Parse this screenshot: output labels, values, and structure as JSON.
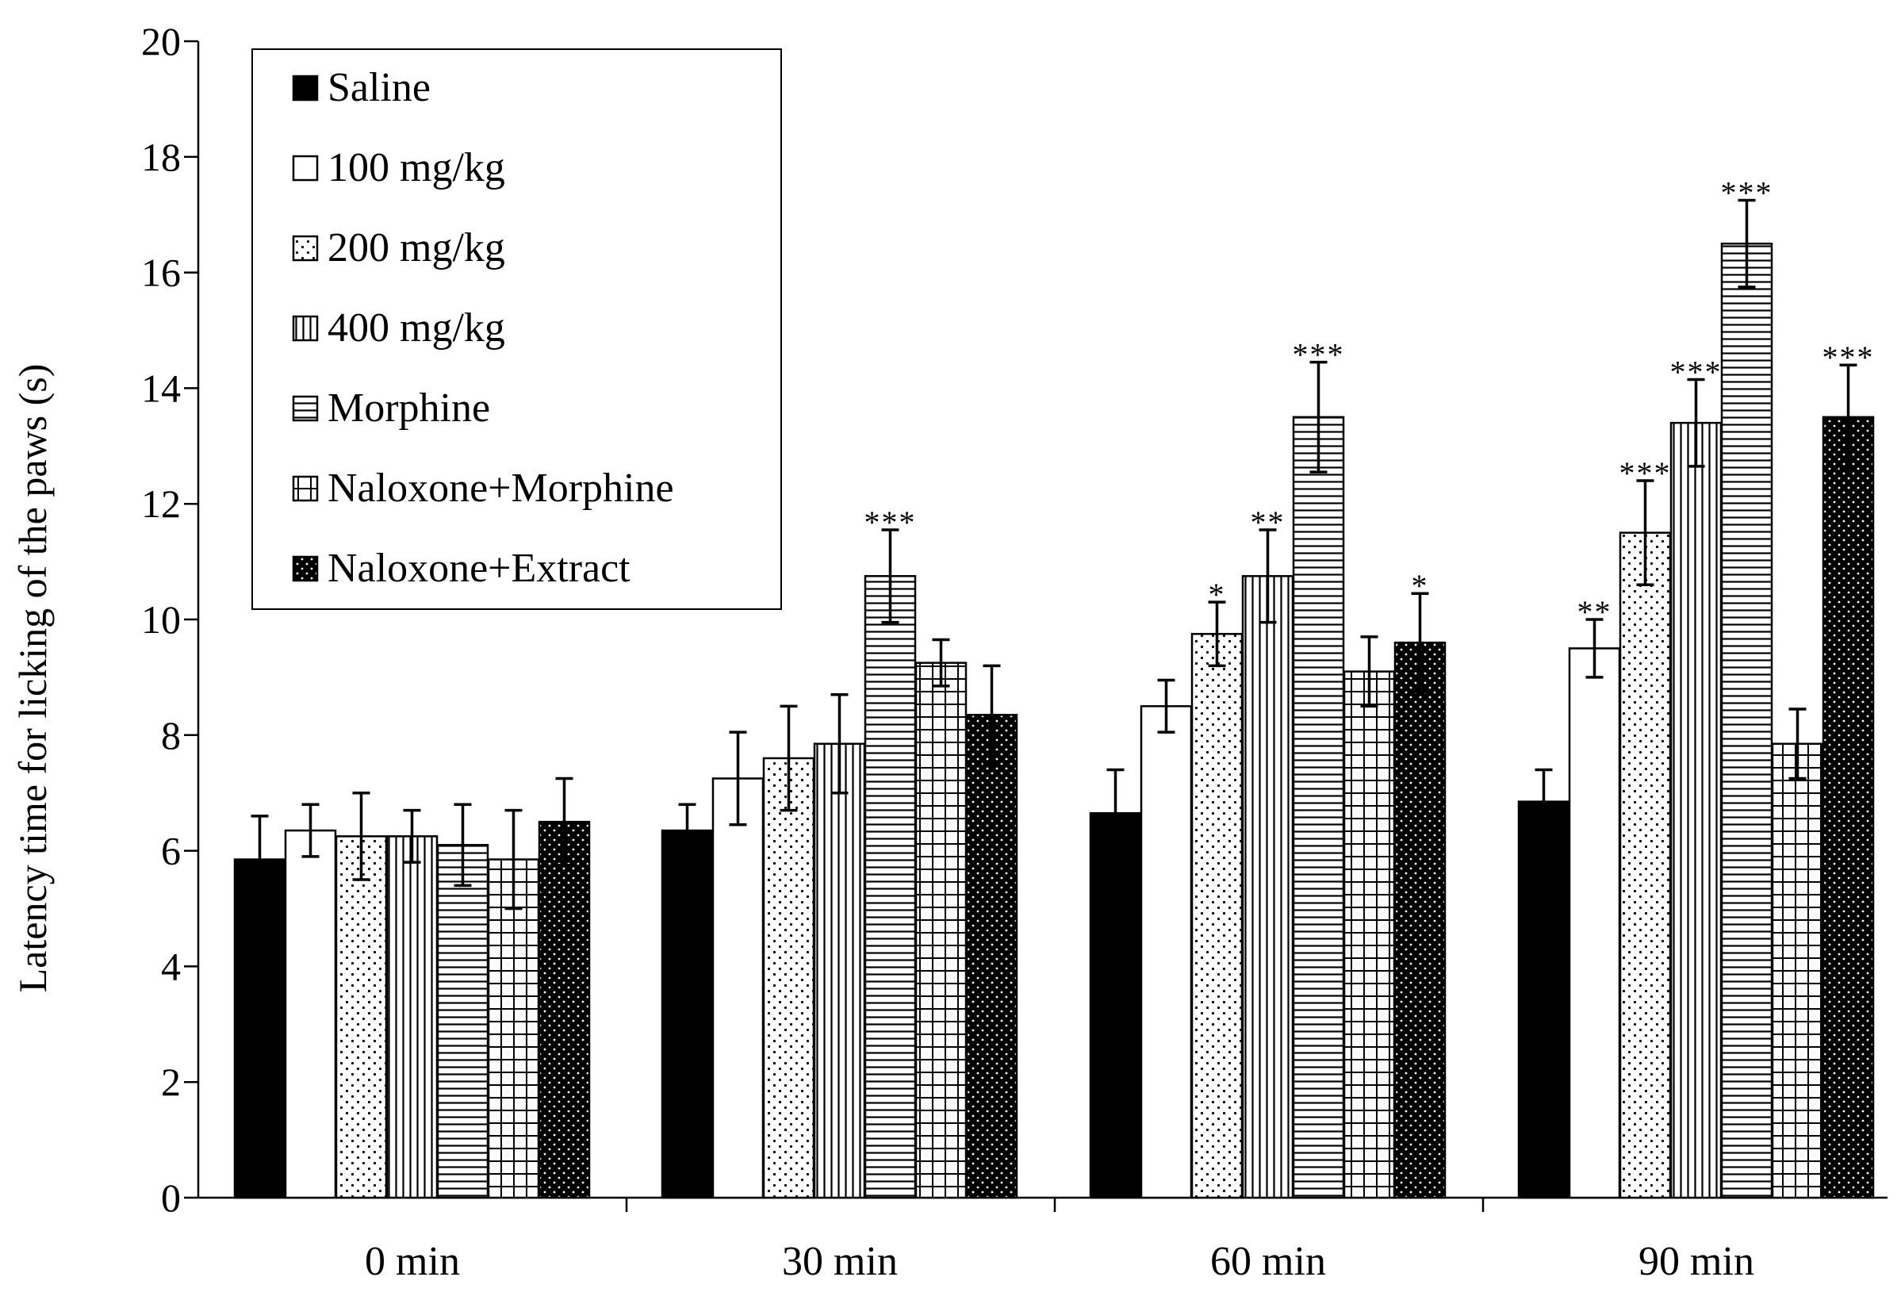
{
  "chart_data": {
    "type": "bar",
    "title": "",
    "xlabel": "",
    "ylabel": "Latency time for licking of the paws (s)",
    "ylim": [
      0,
      20
    ],
    "yticks": [
      0,
      2,
      4,
      6,
      8,
      10,
      12,
      14,
      16,
      18,
      20
    ],
    "categories": [
      "0 min",
      "30 min",
      "60 min",
      "90 min"
    ],
    "legend_position": "top-left",
    "series": [
      {
        "name": "Saline",
        "pattern": "solid",
        "values": [
          5.85,
          6.35,
          6.65,
          6.85
        ],
        "errors": [
          0.75,
          0.45,
          0.75,
          0.55
        ],
        "sig": [
          "",
          "",
          "",
          ""
        ]
      },
      {
        "name": "100 mg/kg",
        "pattern": "white",
        "values": [
          6.35,
          7.25,
          8.5,
          9.5
        ],
        "errors": [
          0.45,
          0.8,
          0.45,
          0.5
        ],
        "sig": [
          "",
          "",
          "",
          "**"
        ]
      },
      {
        "name": "200 mg/kg",
        "pattern": "dots",
        "values": [
          6.25,
          7.6,
          9.75,
          11.5
        ],
        "errors": [
          0.75,
          0.9,
          0.55,
          0.9
        ],
        "sig": [
          "",
          "",
          "*",
          "***"
        ]
      },
      {
        "name": "400 mg/kg",
        "pattern": "vlines",
        "values": [
          6.25,
          7.85,
          10.75,
          13.4
        ],
        "errors": [
          0.45,
          0.85,
          0.8,
          0.75
        ],
        "sig": [
          "",
          "",
          "**",
          "***"
        ]
      },
      {
        "name": "Morphine",
        "pattern": "hlines",
        "values": [
          6.1,
          10.75,
          13.5,
          16.5
        ],
        "errors": [
          0.7,
          0.8,
          0.95,
          0.75
        ],
        "sig": [
          "",
          "***",
          "***",
          "***"
        ]
      },
      {
        "name": "Naloxone+Morphine",
        "pattern": "grid",
        "values": [
          5.85,
          9.25,
          9.1,
          7.85
        ],
        "errors": [
          0.85,
          0.4,
          0.6,
          0.6
        ],
        "sig": [
          "",
          "",
          "",
          ""
        ]
      },
      {
        "name": "Naloxone+Extract",
        "pattern": "dark-dots",
        "values": [
          6.5,
          8.35,
          9.6,
          13.5
        ],
        "errors": [
          0.75,
          0.85,
          0.85,
          0.9
        ],
        "sig": [
          "",
          "",
          "*",
          "***"
        ]
      }
    ]
  }
}
